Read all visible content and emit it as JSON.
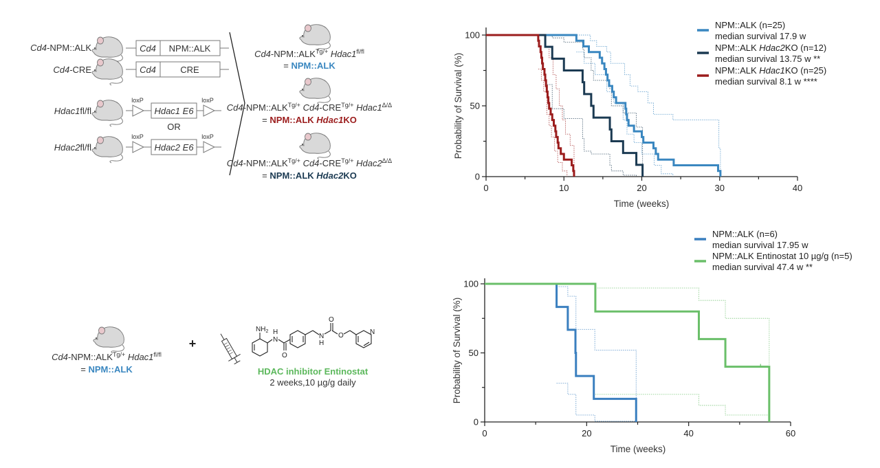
{
  "diagram": {
    "parents": [
      {
        "label_italic": "Cd4",
        "label_rest": "-NPM::ALK",
        "construct": [
          "Cd4",
          "NPM::ALK"
        ]
      },
      {
        "label_italic": "Cd4",
        "label_rest": "-CRE",
        "construct": [
          "Cd4",
          "CRE"
        ]
      },
      {
        "label_italic": "Hdac1",
        "label_rest": "fl/fl",
        "construct": [
          "Hdac1 E6"
        ],
        "loxp": "loxP"
      },
      {
        "label_italic": "Hdac2",
        "label_rest": "fl/fl",
        "construct": [
          "Hdac2 E6"
        ],
        "loxp": "loxP"
      }
    ],
    "or_label": "OR",
    "offspring": [
      {
        "genotype": [
          "Cd4",
          "-NPM::ALK",
          "Tg/+",
          " ",
          "Hdac1",
          "fl/fl"
        ],
        "eq": "= ",
        "result": [
          "NPM::ALK",
          ""
        ],
        "color": "#3a87c0"
      },
      {
        "genotype": [
          "Cd4",
          "-NPM::ALK",
          "Tg/+",
          " ",
          "Cd4",
          "-CRE",
          "Tg/+",
          " ",
          "Hdac1",
          "Δ/Δ"
        ],
        "eq": "= ",
        "result": [
          "NPM::ALK ",
          "Hdac1",
          "KO"
        ],
        "color": "#9b1c1c"
      },
      {
        "genotype": [
          "Cd4",
          "-NPM::ALK",
          "Tg/+",
          " ",
          "Cd4",
          "-CRE",
          "Tg/+",
          " ",
          "Hdac2",
          "Δ/Δ"
        ],
        "eq": "= ",
        "result": [
          "NPM::ALK ",
          "Hdac2",
          "KO"
        ],
        "color": "#1b3a52"
      }
    ],
    "treatment": {
      "genotype": [
        "Cd4",
        "-NPM::ALK",
        "Tg/+",
        " ",
        "Hdac1",
        "fl/fl"
      ],
      "eq": "= ",
      "result": "NPM::ALK",
      "plus": "+",
      "molecule_labels": {
        "nh2": "NH",
        "nh2_sub": "2",
        "h": "H",
        "n": "N",
        "o": "O"
      },
      "drug": "HDAC inhibitor Entinostat",
      "dosing": "2 weeks,10 µg/g daily",
      "drug_color": "#5cb85c"
    }
  },
  "chart_data": [
    {
      "type": "line",
      "style": "kaplan-meier step",
      "xlabel": "Time (weeks)",
      "ylabel": "Probability of Survival (%)",
      "xlim": [
        0,
        40
      ],
      "ylim": [
        0,
        100
      ],
      "xticks": [
        0,
        10,
        20,
        30,
        40
      ],
      "yticks": [
        0,
        50,
        100
      ],
      "grid": false,
      "legend": "top-right",
      "series": [
        {
          "name": [
            "NPM::ALK (n=25)"
          ],
          "subtitle": "median survival 17.9 w",
          "color": "#3a87c0",
          "steps": [
            [
              0,
              100
            ],
            [
              11.6,
              96
            ],
            [
              12.5,
              92
            ],
            [
              13.2,
              88
            ],
            [
              14.6,
              84
            ],
            [
              14.9,
              80
            ],
            [
              15.2,
              76
            ],
            [
              15.4,
              72
            ],
            [
              15.6,
              68
            ],
            [
              15.8,
              64
            ],
            [
              16.2,
              60
            ],
            [
              16.4,
              56
            ],
            [
              16.7,
              52
            ],
            [
              17.9,
              48
            ],
            [
              18.0,
              44
            ],
            [
              18.1,
              40
            ],
            [
              18.3,
              36
            ],
            [
              19.0,
              32
            ],
            [
              20.0,
              28
            ],
            [
              20.2,
              24
            ],
            [
              21.5,
              20
            ],
            [
              21.8,
              16
            ],
            [
              22.1,
              12
            ],
            [
              24.1,
              8
            ],
            [
              29.8,
              4
            ],
            [
              30.1,
              0
            ]
          ],
          "ci_upper": [
            [
              0,
              100
            ],
            [
              12.5,
              100
            ],
            [
              13.4,
              96
            ],
            [
              14.2,
              92
            ],
            [
              15.5,
              88
            ],
            [
              16.0,
              80
            ],
            [
              17.8,
              72
            ],
            [
              18.5,
              64
            ],
            [
              19.5,
              60
            ],
            [
              20.8,
              52
            ],
            [
              21.5,
              44
            ],
            [
              24.0,
              40
            ],
            [
              29.9,
              20
            ],
            [
              30.1,
              0
            ]
          ],
          "ci_lower": [
            [
              11.6,
              88
            ],
            [
              12.6,
              80
            ],
            [
              14.0,
              72
            ],
            [
              15.5,
              60
            ],
            [
              16.4,
              52
            ],
            [
              17.6,
              40
            ],
            [
              18.1,
              30
            ],
            [
              19.0,
              24
            ],
            [
              20.0,
              16
            ],
            [
              21.6,
              8
            ],
            [
              22.5,
              2
            ],
            [
              24.0,
              0
            ]
          ]
        },
        {
          "name": [
            "NPM::ALK ",
            "Hdac2",
            "KO (n=12)"
          ],
          "subtitle": "median survival 13.75 w **",
          "color": "#1b3a52",
          "steps": [
            [
              0,
              100
            ],
            [
              7.6,
              91.7
            ],
            [
              8.5,
              83.3
            ],
            [
              10.0,
              75
            ],
            [
              12.4,
              66.7
            ],
            [
              12.6,
              58.3
            ],
            [
              13.5,
              50
            ],
            [
              13.8,
              41.7
            ],
            [
              15.9,
              33.3
            ],
            [
              16.1,
              25
            ],
            [
              17.6,
              16.7
            ],
            [
              19.3,
              8.3
            ],
            [
              20.1,
              0
            ]
          ],
          "ci_upper": [
            [
              7.6,
              100
            ],
            [
              8.5,
              98
            ],
            [
              10.0,
              95
            ],
            [
              12.4,
              90
            ],
            [
              12.6,
              84
            ],
            [
              13.5,
              75
            ],
            [
              13.8,
              68
            ],
            [
              15.9,
              62
            ],
            [
              16.1,
              50
            ],
            [
              17.6,
              45
            ],
            [
              19.3,
              35
            ],
            [
              20.1,
              0
            ]
          ],
          "ci_lower": [
            [
              7.6,
              65
            ],
            [
              8.5,
              48
            ],
            [
              10.0,
              41
            ],
            [
              12.4,
              27
            ],
            [
              12.6,
              18
            ],
            [
              13.5,
              16
            ],
            [
              15.9,
              8
            ],
            [
              16.1,
              4
            ],
            [
              17.6,
              1
            ],
            [
              19.3,
              0
            ]
          ]
        },
        {
          "name": [
            "NPM::ALK ",
            "Hdac1",
            "KO (n=25)"
          ],
          "subtitle": "median survival 8.1 w ****",
          "color": "#9b1c1c",
          "steps": [
            [
              0,
              100
            ],
            [
              6.7,
              96
            ],
            [
              6.8,
              92
            ],
            [
              7.0,
              88
            ],
            [
              7.1,
              84
            ],
            [
              7.2,
              80
            ],
            [
              7.3,
              76
            ],
            [
              7.5,
              72
            ],
            [
              7.6,
              68
            ],
            [
              7.7,
              64
            ],
            [
              7.8,
              60
            ],
            [
              7.9,
              56
            ],
            [
              8.0,
              52
            ],
            [
              8.1,
              48
            ],
            [
              8.3,
              44
            ],
            [
              8.5,
              40
            ],
            [
              8.7,
              36
            ],
            [
              8.9,
              32
            ],
            [
              9.0,
              28
            ],
            [
              9.2,
              24
            ],
            [
              9.3,
              20
            ],
            [
              9.6,
              16
            ],
            [
              10.0,
              12
            ],
            [
              11.0,
              8
            ],
            [
              11.2,
              4
            ],
            [
              11.3,
              0
            ]
          ],
          "ci_upper": [
            [
              6.7,
              100
            ],
            [
              7.6,
              92
            ],
            [
              8.1,
              84
            ],
            [
              8.6,
              72
            ],
            [
              9.0,
              62
            ],
            [
              9.4,
              50
            ],
            [
              9.8,
              40
            ],
            [
              10.2,
              30
            ],
            [
              10.8,
              22
            ],
            [
              11.3,
              0
            ]
          ],
          "ci_lower": [
            [
              6.7,
              76
            ],
            [
              7.1,
              68
            ],
            [
              7.4,
              60
            ],
            [
              7.8,
              44
            ],
            [
              8.1,
              36
            ],
            [
              8.4,
              28
            ],
            [
              8.8,
              18
            ],
            [
              9.2,
              10
            ],
            [
              9.8,
              4
            ],
            [
              10.4,
              0
            ]
          ]
        }
      ]
    },
    {
      "type": "line",
      "style": "kaplan-meier step",
      "xlabel": "Time (weeks)",
      "ylabel": "Probability of Survival (%)",
      "xlim": [
        0,
        60
      ],
      "ylim": [
        0,
        100
      ],
      "xticks": [
        0,
        20,
        40,
        60
      ],
      "yticks": [
        0,
        50,
        100
      ],
      "grid": false,
      "legend": "top-right",
      "series": [
        {
          "name": [
            "NPM::ALK (n=6)"
          ],
          "subtitle": "median survival 17.95 w",
          "color": "#3a7fbf",
          "steps": [
            [
              0,
              100
            ],
            [
              14.1,
              83.3
            ],
            [
              16.3,
              66.7
            ],
            [
              17.8,
              50
            ],
            [
              17.9,
              33.3
            ],
            [
              21.4,
              16.7
            ],
            [
              29.7,
              0
            ]
          ],
          "ci_upper": [
            [
              14.1,
              98
            ],
            [
              16.3,
              91
            ],
            [
              17.9,
              67
            ],
            [
              21.6,
              52
            ],
            [
              29.7,
              0
            ]
          ],
          "ci_lower": [
            [
              14.1,
              28
            ],
            [
              16.3,
              20
            ],
            [
              17.9,
              5
            ],
            [
              21.6,
              0.5
            ],
            [
              29.7,
              0
            ]
          ]
        },
        {
          "name": [
            "NPM::ALK Entinostat 10 µg/g (n=5)"
          ],
          "subtitle": "median survival 47.4 w **",
          "color": "#6abf69",
          "steps": [
            [
              0,
              100
            ],
            [
              21.7,
              80
            ],
            [
              42.0,
              60
            ],
            [
              47.2,
              40
            ],
            [
              55.8,
              0
            ]
          ],
          "censored": [
            [
              54.1,
              40
            ]
          ],
          "ci_upper": [
            [
              21.7,
              97
            ],
            [
              42.0,
              88
            ],
            [
              47.2,
              75
            ],
            [
              55.8,
              0
            ]
          ],
          "ci_lower": [
            [
              21.7,
              20
            ],
            [
              42.0,
              12
            ],
            [
              47.2,
              5
            ],
            [
              55.8,
              0
            ]
          ]
        }
      ]
    }
  ]
}
